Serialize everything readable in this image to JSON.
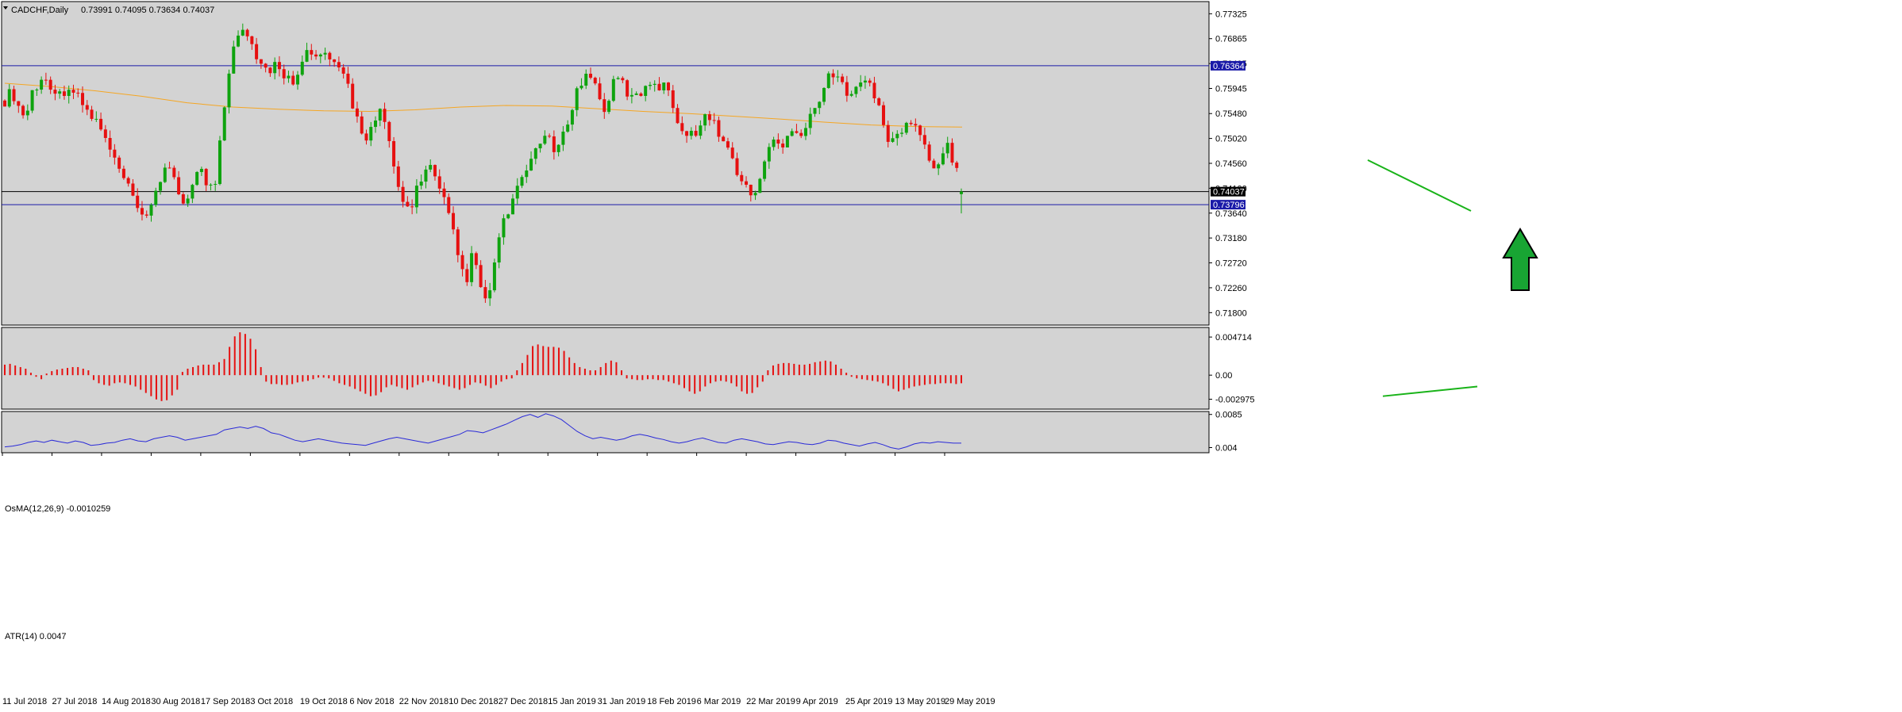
{
  "header": {
    "symbol": "CADCHF,Daily",
    "ohlc": "0.73991 0.74095 0.73634 0.74037"
  },
  "osma_label": "OsMA(12,26,9) -0.0010259",
  "atr_label": "ATR(14) 0.0047",
  "colors": {
    "bg": "#d3d3d3",
    "bull": "#0ea30e",
    "bear": "#e61010",
    "ma": "#f5a623",
    "hline_blue": "#1a1aa8",
    "atr_line": "#2a2ad8",
    "trend_green": "#19b319",
    "arrow_fill": "#18a533"
  },
  "chart_data": [
    {
      "type": "candlestick",
      "symbol": "CADCHF",
      "timeframe": "Daily",
      "ylim": [
        0.7157,
        0.7755
      ],
      "y_ticks": [
        "0.77325",
        "0.76865",
        "0.76405",
        "0.75945",
        "0.75480",
        "0.75020",
        "0.74560",
        "0.74100",
        "0.73640",
        "0.73180",
        "0.72720",
        "0.72260",
        "0.71800"
      ],
      "x_ticks": [
        "11 Jul 2018",
        "27 Jul 2018",
        "14 Aug 2018",
        "30 Aug 2018",
        "17 Sep 2018",
        "3 Oct 2018",
        "19 Oct 2018",
        "6 Nov 2018",
        "22 Nov 2018",
        "10 Dec 2018",
        "27 Dec 2018",
        "15 Jan 2019",
        "31 Jan 2019",
        "18 Feb 2019",
        "6 Mar 2019",
        "22 Mar 2019",
        "9 Apr 2019",
        "25 Apr 2019",
        "13 May 2019",
        "29 May 2019"
      ],
      "close_path": [
        0.7572,
        0.759,
        0.756,
        0.754,
        0.7592,
        0.7605,
        0.7612,
        0.7595,
        0.758,
        0.7602,
        0.7585,
        0.7568,
        0.7548,
        0.7535,
        0.7512,
        0.7482,
        0.745,
        0.743,
        0.7398,
        0.7372,
        0.734,
        0.7385,
        0.742,
        0.7448,
        0.743,
        0.7395,
        0.7382,
        0.7432,
        0.7445,
        0.7415,
        0.7405,
        0.752,
        0.7622,
        0.7692,
        0.7712,
        0.7685,
        0.7658,
        0.7632,
        0.7618,
        0.7645,
        0.7622,
        0.7605,
        0.763,
        0.7668,
        0.765,
        0.7652,
        0.7658,
        0.764,
        0.762,
        0.761,
        0.7555,
        0.752,
        0.7505,
        0.7535,
        0.7552,
        0.7492,
        0.743,
        0.7382,
        0.7372,
        0.7408,
        0.7442,
        0.7448,
        0.7412,
        0.7382,
        0.7338,
        0.728,
        0.7235,
        0.7288,
        0.7235,
        0.719,
        0.7262,
        0.7328,
        0.7365,
        0.7395,
        0.7418,
        0.7452,
        0.7482,
        0.751,
        0.7495,
        0.7475,
        0.7505,
        0.7555,
        0.7592,
        0.7612,
        0.7625,
        0.7578,
        0.7555,
        0.7598,
        0.7615,
        0.759,
        0.7572,
        0.7585,
        0.7605,
        0.761,
        0.7595,
        0.7598,
        0.7552,
        0.7518,
        0.7502,
        0.7518,
        0.7545,
        0.7535,
        0.7522,
        0.7495,
        0.7468,
        0.744,
        0.741,
        0.7395,
        0.7422,
        0.7462,
        0.7502,
        0.7485,
        0.751,
        0.7528,
        0.7505,
        0.7532,
        0.7555,
        0.7592,
        0.7612,
        0.7618,
        0.7598,
        0.7588,
        0.7608,
        0.7612,
        0.7595,
        0.7565,
        0.7522,
        0.7488,
        0.7512,
        0.7522,
        0.754,
        0.751,
        0.7475,
        0.7442,
        0.747,
        0.749,
        0.7455,
        0.7403
      ],
      "hlines": [
        {
          "label": "0.76364",
          "value": 0.76364
        },
        {
          "label": "0.74037",
          "value": 0.74037
        },
        {
          "label": "0.73796",
          "value": 0.73796
        }
      ],
      "ma_path": [
        0.7604,
        0.7598,
        0.759,
        0.758,
        0.7568,
        0.756,
        0.7556,
        0.7553,
        0.7552,
        0.7555,
        0.756,
        0.7563,
        0.7562,
        0.7557,
        0.7552,
        0.7548,
        0.7543,
        0.7538,
        0.7532,
        0.7527,
        0.7524,
        0.7523
      ],
      "trendline": [
        0.7462,
        0.7368
      ],
      "annotation": "up-arrow"
    },
    {
      "type": "bar",
      "name": "OsMA(12,26,9)",
      "value": "-0.0010259",
      "y_ticks": [
        "0.004714",
        "0.00",
        "-0.002975"
      ],
      "ylim": [
        -0.0042,
        0.0059
      ],
      "values": [
        0.0013,
        0.0014,
        0.0012,
        0.001,
        0.0008,
        0.0003,
        -0.0002,
        -0.0005,
        0.0002,
        0.0005,
        0.0007,
        0.0008,
        0.0009,
        0.001,
        0.001,
        0.0008,
        0.0006,
        -0.0006,
        -0.001,
        -0.0012,
        -0.0013,
        -0.001,
        -0.0009,
        -0.001,
        -0.0012,
        -0.0014,
        -0.0018,
        -0.0022,
        -0.0026,
        -0.003,
        -0.0032,
        -0.0031,
        -0.0025,
        -0.0018,
        0.0004,
        0.0008,
        0.001,
        0.0012,
        0.0013,
        0.0013,
        0.0013,
        0.0016,
        0.002,
        0.0035,
        0.0048,
        0.0053,
        0.0051,
        0.0045,
        0.0032,
        0.001,
        -0.0008,
        -0.0011,
        -0.0011,
        -0.0012,
        -0.0012,
        -0.0011,
        -0.0009,
        -0.0008,
        -0.0007,
        -0.0005,
        -0.0003,
        -0.0003,
        -0.0004,
        -0.0007,
        -0.001,
        -0.0012,
        -0.0014,
        -0.0017,
        -0.002,
        -0.0023,
        -0.0026,
        -0.0025,
        -0.0021,
        -0.0015,
        -0.0012,
        -0.0014,
        -0.0016,
        -0.0018,
        -0.0015,
        -0.0012,
        -0.0009,
        -0.0007,
        -0.0008,
        -0.001,
        -0.0012,
        -0.0014,
        -0.0016,
        -0.0018,
        -0.0016,
        -0.0012,
        -0.0009,
        -0.001,
        -0.0013,
        -0.0016,
        -0.0012,
        -0.0008,
        -0.0005,
        -0.0004,
        0.0006,
        0.0015,
        0.0025,
        0.0036,
        0.0038,
        0.0036,
        0.0035,
        0.0035,
        0.0034,
        0.003,
        0.0022,
        0.0015,
        0.001,
        0.0008,
        0.0006,
        0.0006,
        0.001,
        0.0015,
        0.0018,
        0.0016,
        0.0006,
        -0.0004,
        -0.0005,
        -0.0006,
        -0.0006,
        -0.0005,
        -0.0005,
        -0.0006,
        -0.0006,
        -0.0008,
        -0.001,
        -0.0012,
        -0.0016,
        -0.002,
        -0.0023,
        -0.002,
        -0.0014,
        -0.001,
        -0.0008,
        -0.0007,
        -0.0008,
        -0.001,
        -0.0014,
        -0.002,
        -0.0023,
        -0.0022,
        -0.0015,
        -0.0008,
        0.0006,
        0.0012,
        0.0014,
        0.0015,
        0.0015,
        0.0014,
        0.0013,
        0.0013,
        0.0014,
        0.0016,
        0.0017,
        0.0018,
        0.0017,
        0.0013,
        0.0008,
        0.0003,
        -0.0002,
        -0.0004,
        -0.0005,
        -0.0006,
        -0.0007,
        -0.0008,
        -0.001,
        -0.0013,
        -0.0017,
        -0.002,
        -0.0018,
        -0.0016,
        -0.0014,
        -0.0013,
        -0.0012,
        -0.0011,
        -0.0011,
        -0.001,
        -0.001,
        -0.001,
        -0.0011,
        -0.001
      ],
      "trendline": [
        -0.0026,
        -0.0014
      ]
    },
    {
      "type": "line",
      "name": "ATR(14)",
      "value": "0.0047",
      "y_ticks": [
        "0.0085",
        "0.004"
      ],
      "ylim": [
        0.0033,
        0.0089
      ],
      "values": [
        0.0041,
        0.0042,
        0.0044,
        0.0047,
        0.0049,
        0.0047,
        0.005,
        0.0048,
        0.0046,
        0.0049,
        0.0047,
        0.0043,
        0.0044,
        0.0046,
        0.0047,
        0.005,
        0.0052,
        0.0049,
        0.0048,
        0.0052,
        0.0054,
        0.0056,
        0.0054,
        0.005,
        0.0052,
        0.0054,
        0.0056,
        0.0058,
        0.0064,
        0.0066,
        0.0068,
        0.0066,
        0.0069,
        0.0066,
        0.006,
        0.0058,
        0.0054,
        0.005,
        0.0048,
        0.005,
        0.0052,
        0.005,
        0.0048,
        0.0046,
        0.0045,
        0.0044,
        0.0043,
        0.0046,
        0.0049,
        0.0052,
        0.0054,
        0.0052,
        0.005,
        0.0048,
        0.0046,
        0.0049,
        0.0052,
        0.0055,
        0.0058,
        0.0063,
        0.0062,
        0.006,
        0.0064,
        0.0068,
        0.0072,
        0.0077,
        0.0082,
        0.0085,
        0.0081,
        0.0086,
        0.0083,
        0.0078,
        0.007,
        0.0062,
        0.0056,
        0.0052,
        0.0054,
        0.0052,
        0.005,
        0.0052,
        0.0056,
        0.0058,
        0.0056,
        0.0053,
        0.0051,
        0.0048,
        0.0046,
        0.0048,
        0.0051,
        0.0053,
        0.005,
        0.0047,
        0.0046,
        0.005,
        0.0052,
        0.005,
        0.0048,
        0.0045,
        0.0044,
        0.0046,
        0.0048,
        0.0047,
        0.0045,
        0.0044,
        0.0046,
        0.005,
        0.0049,
        0.0046,
        0.0044,
        0.0042,
        0.0045,
        0.0047,
        0.0044,
        0.004,
        0.0038,
        0.0041,
        0.0045,
        0.0047,
        0.0046,
        0.0048,
        0.0047,
        0.0046,
        0.0046
      ]
    }
  ]
}
